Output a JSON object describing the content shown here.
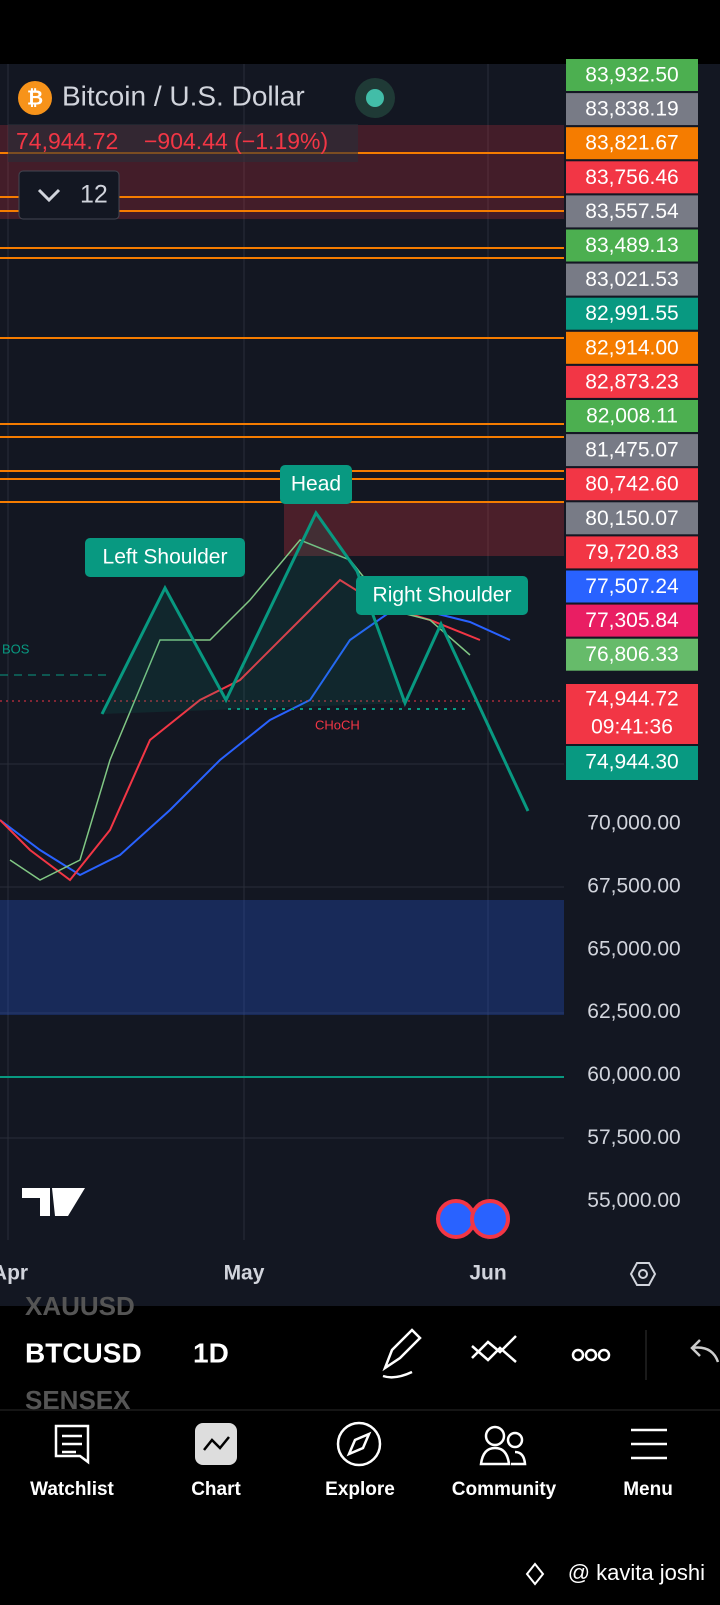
{
  "header": {
    "symbol_name": "Bitcoin / U.S. Dollar",
    "price": "74,944.72",
    "change": "−904.44 (−1.19%)",
    "interval_count": "12"
  },
  "price_tags": [
    {
      "label": "83,932.50",
      "color": "#4caf50"
    },
    {
      "label": "83,838.19",
      "color": "#787b86"
    },
    {
      "label": "83,821.67",
      "color": "#f57c00"
    },
    {
      "label": "83,756.46",
      "color": "#f23645"
    },
    {
      "label": "83,557.54",
      "color": "#787b86"
    },
    {
      "label": "83,489.13",
      "color": "#4caf50"
    },
    {
      "label": "83,021.53",
      "color": "#787b86"
    },
    {
      "label": "82,991.55",
      "color": "#089981"
    },
    {
      "label": "82,914.00",
      "color": "#f57c00"
    },
    {
      "label": "82,873.23",
      "color": "#f23645"
    },
    {
      "label": "82,008.11",
      "color": "#4caf50"
    },
    {
      "label": "81,475.07",
      "color": "#787b86"
    },
    {
      "label": "80,742.60",
      "color": "#f23645"
    },
    {
      "label": "80,150.07",
      "color": "#787b86"
    },
    {
      "label": "79,720.83",
      "color": "#f23645"
    },
    {
      "label": "77,507.24",
      "color": "#2962ff"
    },
    {
      "label": "77,305.84",
      "color": "#e91e63"
    },
    {
      "label": "76,806.33",
      "color": "#66bb6a"
    }
  ],
  "current_price": {
    "price": "74,944.72",
    "countdown": "09:41:36",
    "color": "#f23645"
  },
  "bid_price": {
    "price": "74,944.30",
    "color": "#089981"
  },
  "price_axis": [
    "70,000.00",
    "67,500.00",
    "65,000.00",
    "62,500.00",
    "60,000.00",
    "57,500.00",
    "55,000.00"
  ],
  "annotations": {
    "head": "Head",
    "left_shoulder": "Left Shoulder",
    "right_shoulder": "Right Shoulder",
    "bos": "BOS",
    "choch": "CHoCH"
  },
  "time_axis": [
    "Apr",
    "May",
    "Jun"
  ],
  "toolbar": {
    "prev_symbol": "XAUUSD",
    "symbol": "BTCUSD",
    "interval": "1D",
    "next_symbol": "SENSEX"
  },
  "nav": [
    "Watchlist",
    "Chart",
    "Explore",
    "Community",
    "Menu"
  ],
  "watermark": "@ kavita joshi"
}
